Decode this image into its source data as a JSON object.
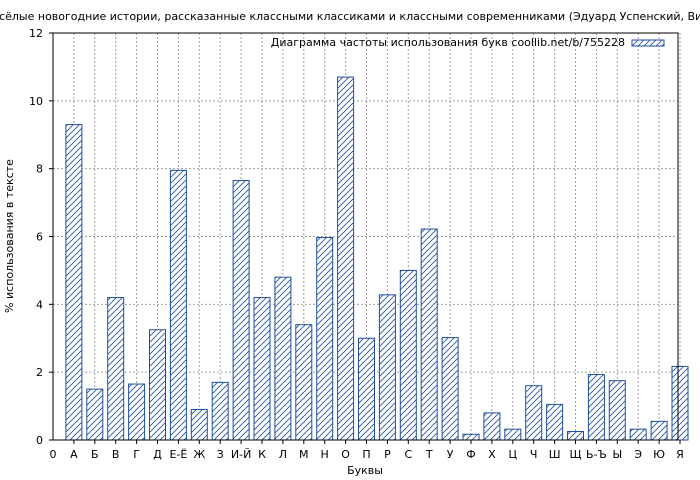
{
  "chart_data": {
    "type": "bar",
    "title": "Весёлые новогодние истории, рассказанные классными классиками и классными современниками (Эдуард Успенский, Викт",
    "xlabel": "Буквы",
    "ylabel": "% использования в тексте",
    "legend": "Диаграмма частоты использования букв coollib.net/b/755228",
    "legend_position": "top-right",
    "grid": true,
    "ylim": [
      0,
      12
    ],
    "yticks": [
      "0",
      "2",
      "4",
      "6",
      "8",
      "10",
      "12"
    ],
    "x_origin_label": "0",
    "categories": [
      "А",
      "Б",
      "В",
      "Г",
      "Д",
      "Е-Ё",
      "Ж",
      "З",
      "И-Й",
      "К",
      "Л",
      "М",
      "Н",
      "О",
      "П",
      "Р",
      "С",
      "Т",
      "У",
      "Ф",
      "Х",
      "Ц",
      "Ч",
      "Ш",
      "Щ",
      "Ь-Ъ",
      "Ы",
      "Э",
      "Ю",
      "Я"
    ],
    "values": [
      9.3,
      1.5,
      4.2,
      1.65,
      3.25,
      7.95,
      0.9,
      1.7,
      7.65,
      4.2,
      4.8,
      3.4,
      5.97,
      10.7,
      3.0,
      4.28,
      5.0,
      6.22,
      3.02,
      0.17,
      0.8,
      0.32,
      1.6,
      1.05,
      0.25,
      1.93,
      1.75,
      0.32,
      0.55,
      2.17
    ],
    "colors": {
      "bar_stroke": "#1f4ea1",
      "hatch": "#1f4ea1",
      "grid": "#a0a0a0",
      "axis": "#000000"
    }
  }
}
